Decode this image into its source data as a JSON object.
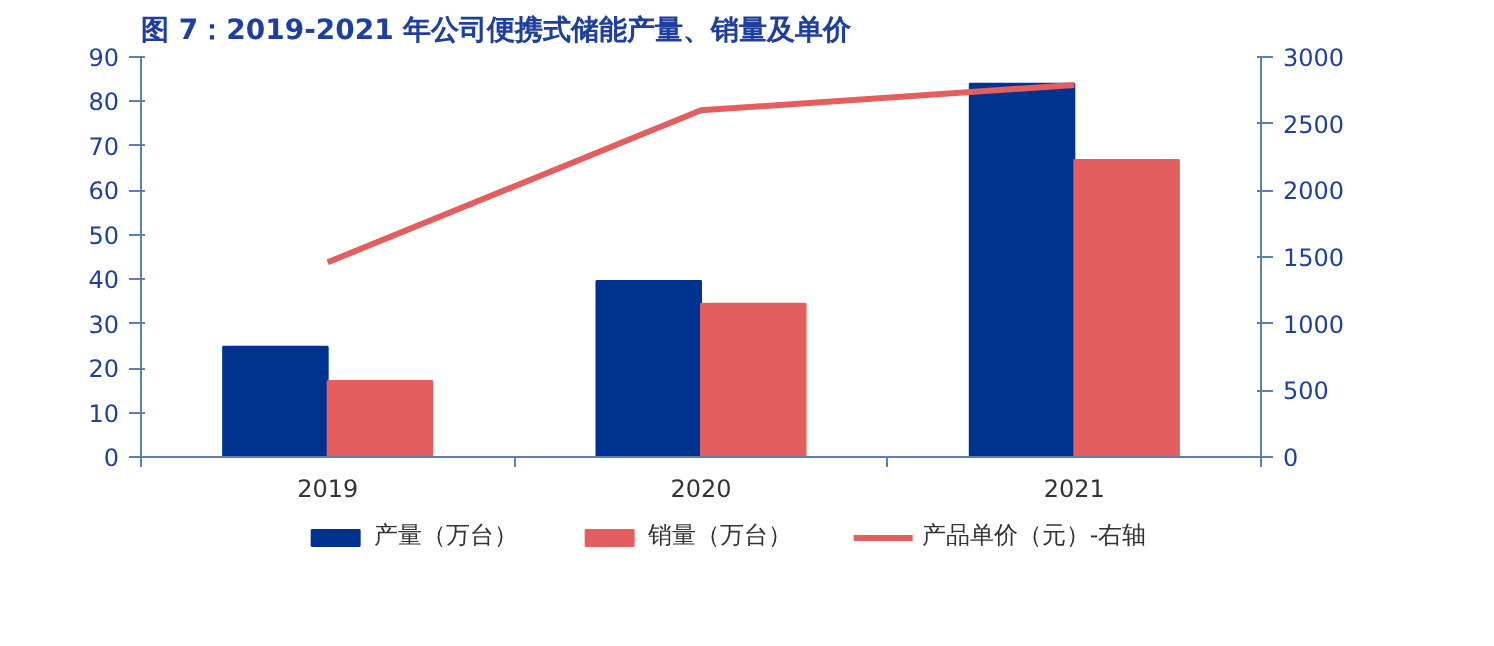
{
  "chart_data": {
    "type": "bar",
    "title": "图 7：2019-2021 年公司便携式储能产量、销量及单价",
    "categories": [
      "2019",
      "2020",
      "2021"
    ],
    "series": [
      {
        "name": "产量（万台）",
        "color": "#00338f",
        "values": [
          24.8,
          39.6,
          84.0
        ]
      },
      {
        "name": "销量（万台）",
        "color": "#e35f5f",
        "values": [
          17.1,
          34.5,
          66.8
        ]
      },
      {
        "name": "产品单价（元）-右轴",
        "type": "line",
        "axis": "y2",
        "color": "#e35f5f",
        "values": [
          1460,
          2600,
          2790
        ]
      }
    ],
    "ylim": [
      0,
      90
    ],
    "yticks": [
      0,
      10,
      20,
      30,
      40,
      50,
      60,
      70,
      80,
      90
    ],
    "y2lim": [
      0,
      3000
    ],
    "y2ticks": [
      0,
      500,
      1000,
      1500,
      2000,
      2500,
      3000
    ],
    "grid": false,
    "legend": "bottom"
  }
}
